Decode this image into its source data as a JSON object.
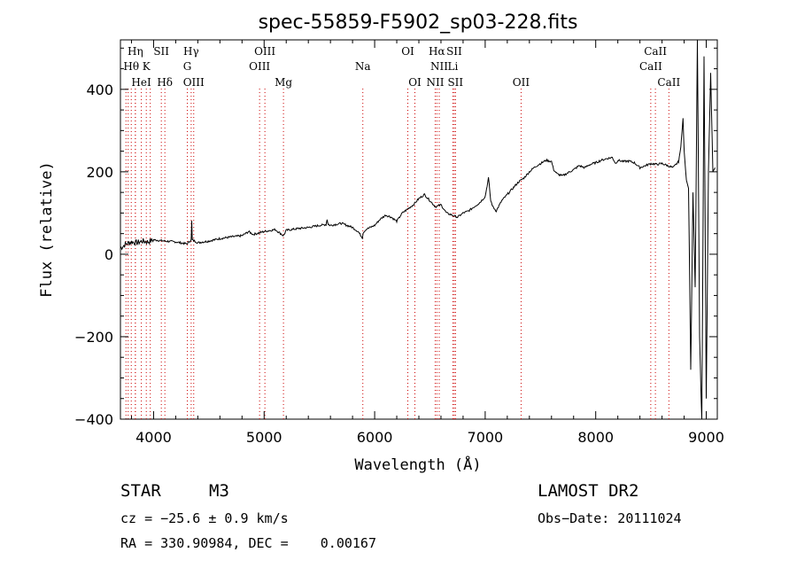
{
  "chart_data": {
    "type": "line",
    "title": "spec-55859-F5902_sp03-228.fits",
    "xlabel": "Wavelength (Å)",
    "ylabel": "Flux (relative)",
    "xlim": [
      3700,
      9100
    ],
    "ylim": [
      -400,
      520
    ],
    "xticks": [
      4000,
      5000,
      6000,
      7000,
      8000,
      9000
    ],
    "yticks": [
      -400,
      -200,
      0,
      200,
      400
    ],
    "grid": false,
    "line_color": "#000000",
    "marker_color": "#cc0000",
    "spectrum": {
      "x": [
        3700,
        3750,
        3800,
        3850,
        3900,
        3950,
        4000,
        4100,
        4200,
        4300,
        4340,
        4345,
        4350,
        4400,
        4500,
        4600,
        4700,
        4800,
        4860,
        4900,
        5000,
        5100,
        5175,
        5200,
        5300,
        5400,
        5500,
        5560,
        5570,
        5580,
        5600,
        5700,
        5800,
        5850,
        5890,
        5895,
        5920,
        6000,
        6050,
        6100,
        6150,
        6200,
        6250,
        6300,
        6350,
        6400,
        6450,
        6500,
        6550,
        6600,
        6650,
        6700,
        6750,
        6800,
        6850,
        6900,
        6950,
        7000,
        7030,
        7050,
        7070,
        7100,
        7150,
        7200,
        7250,
        7300,
        7350,
        7400,
        7450,
        7500,
        7550,
        7600,
        7620,
        7650,
        7700,
        7750,
        7800,
        7850,
        7900,
        7950,
        8000,
        8050,
        8100,
        8150,
        8180,
        8200,
        8250,
        8300,
        8350,
        8400,
        8450,
        8500,
        8550,
        8600,
        8650,
        8700,
        8750,
        8770,
        8790,
        8800,
        8820,
        8840,
        8860,
        8880,
        8900,
        8920,
        8940,
        8960,
        8980,
        9000,
        9020,
        9040,
        9060,
        9080
      ],
      "y": [
        15,
        25,
        30,
        28,
        32,
        30,
        35,
        32,
        30,
        25,
        35,
        80,
        35,
        28,
        32,
        38,
        42,
        45,
        55,
        48,
        55,
        60,
        45,
        58,
        62,
        65,
        70,
        72,
        85,
        72,
        70,
        75,
        65,
        55,
        40,
        52,
        60,
        70,
        85,
        95,
        90,
        80,
        100,
        110,
        120,
        135,
        145,
        130,
        115,
        120,
        100,
        95,
        90,
        100,
        105,
        115,
        125,
        140,
        185,
        130,
        115,
        105,
        130,
        145,
        160,
        175,
        185,
        200,
        212,
        220,
        228,
        225,
        205,
        195,
        190,
        198,
        205,
        215,
        210,
        218,
        222,
        228,
        232,
        235,
        220,
        228,
        225,
        226,
        222,
        210,
        215,
        220,
        218,
        220,
        215,
        210,
        225,
        260,
        330,
        250,
        180,
        160,
        -280,
        150,
        -80,
        520,
        -200,
        -420,
        480,
        -350,
        200,
        440,
        200,
        210
      ],
      "name": ""
    },
    "lines": [
      {
        "label": "Hη",
        "wl": 3835,
        "row": 0
      },
      {
        "label": "SII",
        "wl": 4070,
        "row": 0
      },
      {
        "label": "Hγ",
        "wl": 4340,
        "row": 0
      },
      {
        "label": "OIII",
        "wl": 5007,
        "row": 0
      },
      {
        "label": "OI",
        "wl": 6300,
        "row": 0
      },
      {
        "label": "Hα",
        "wl": 6563,
        "row": 0
      },
      {
        "label": "SII",
        "wl": 6720,
        "row": 0
      },
      {
        "label": "CaII",
        "wl": 8540,
        "row": 0
      },
      {
        "label": "Hθ",
        "wl": 3798,
        "row": 1
      },
      {
        "label": "K",
        "wl": 3934,
        "row": 1
      },
      {
        "label": "G",
        "wl": 4305,
        "row": 1
      },
      {
        "label": "OIII",
        "wl": 4959,
        "row": 1
      },
      {
        "label": "Na",
        "wl": 5893,
        "row": 1
      },
      {
        "label": "NII",
        "wl": 6584,
        "row": 1
      },
      {
        "label": "Li",
        "wl": 6708,
        "row": 1
      },
      {
        "label": "CaII",
        "wl": 8498,
        "row": 1
      },
      {
        "label": "HeI",
        "wl": 3889,
        "row": 2
      },
      {
        "label": "Hδ",
        "wl": 4102,
        "row": 2
      },
      {
        "label": "OIII",
        "wl": 4363,
        "row": 2
      },
      {
        "label": "Mg",
        "wl": 5175,
        "row": 2
      },
      {
        "label": "OI",
        "wl": 6364,
        "row": 2
      },
      {
        "label": "NII",
        "wl": 6548,
        "row": 2
      },
      {
        "label": "SII",
        "wl": 6731,
        "row": 2
      },
      {
        "label": "OII",
        "wl": 7325,
        "row": 2
      },
      {
        "label": "CaII",
        "wl": 8662,
        "row": 2
      }
    ],
    "extra_marker_wl": [
      3750,
      3770,
      3835,
      3970
    ]
  },
  "info": {
    "object_class": "STAR",
    "subclass": "M3",
    "survey": "LAMOST DR2",
    "cz": "cz = −25.6 ± 0.9 km/s",
    "obs_date": "Obs−Date: 20111024",
    "coords": "RA = 330.90984, DEC =    0.00167"
  }
}
